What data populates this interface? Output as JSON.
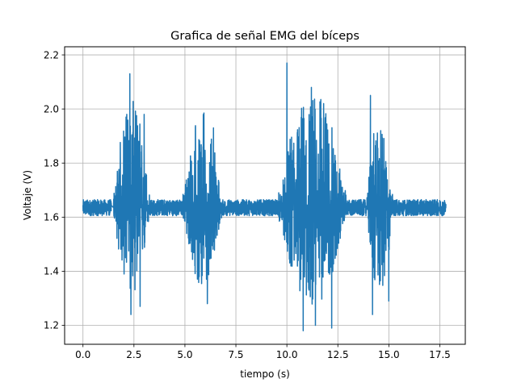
{
  "chart_data": {
    "type": "line",
    "title": "Grafica de señal EMG del bíceps",
    "xlabel": "tiempo (s)",
    "ylabel": "Voltaje (V)",
    "xlim": [
      -0.9,
      18.75
    ],
    "ylim": [
      1.13,
      2.23
    ],
    "x_ticks": [
      0.0,
      2.5,
      5.0,
      7.5,
      10.0,
      12.5,
      15.0,
      17.5
    ],
    "x_tick_labels": [
      "0.0",
      "2.5",
      "5.0",
      "7.5",
      "10.0",
      "12.5",
      "15.0",
      "17.5"
    ],
    "y_ticks": [
      1.2,
      1.4,
      1.6,
      1.8,
      2.0,
      2.2
    ],
    "y_tick_labels": [
      "1.2",
      "1.4",
      "1.6",
      "1.8",
      "2.0",
      "2.2"
    ],
    "grid": true,
    "legend": "none",
    "colors": {
      "line": "#1f77b4",
      "grid": "#b0b0b0",
      "axes": "#000000"
    },
    "series": [
      {
        "baseline": 1.635,
        "x_start": 0.0,
        "x_end": 17.8,
        "segments": [
          {
            "x": [
              0.0,
              1.4
            ],
            "state": "rest",
            "y_min": 1.6,
            "y_max": 1.67
          },
          {
            "x": [
              1.5,
              3.3
            ],
            "state": "contraction",
            "y_min": 1.24,
            "y_max": 2.13,
            "peaks": [
              [
                2.3,
                2.13
              ],
              [
                2.15,
                1.98
              ],
              [
                3.0,
                1.98
              ],
              [
                2.35,
                1.24
              ],
              [
                2.8,
                1.27
              ]
            ]
          },
          {
            "x": [
              3.3,
              4.9
            ],
            "state": "rest",
            "y_min": 1.6,
            "y_max": 1.67
          },
          {
            "x": [
              4.9,
              6.8
            ],
            "state": "contraction",
            "y_min": 1.28,
            "y_max": 2.08,
            "peaks": [
              [
                6.9,
                2.08
              ],
              [
                6.4,
                1.93
              ],
              [
                6.1,
                1.28
              ],
              [
                5.7,
                1.38
              ]
            ]
          },
          {
            "x": [
              6.8,
              9.6
            ],
            "state": "rest",
            "y_min": 1.6,
            "y_max": 1.67
          },
          {
            "x": [
              9.6,
              12.9
            ],
            "state": "contraction",
            "y_min": 1.18,
            "y_max": 2.17,
            "peaks": [
              [
                10.0,
                2.17
              ],
              [
                10.8,
                2.03
              ],
              [
                11.2,
                2.08
              ],
              [
                11.8,
                2.02
              ],
              [
                10.8,
                1.18
              ],
              [
                11.4,
                1.2
              ],
              [
                12.2,
                1.19
              ]
            ]
          },
          {
            "x": [
              12.9,
              13.9
            ],
            "state": "rest",
            "y_min": 1.6,
            "y_max": 1.67
          },
          {
            "x": [
              13.9,
              15.2
            ],
            "state": "contraction",
            "y_min": 1.24,
            "y_max": 2.05,
            "peaks": [
              [
                14.1,
                2.05
              ],
              [
                14.6,
                1.92
              ],
              [
                14.2,
                1.24
              ],
              [
                15.0,
                1.29
              ]
            ]
          },
          {
            "x": [
              15.2,
              17.8
            ],
            "state": "rest",
            "y_min": 1.6,
            "y_max": 1.67
          }
        ]
      }
    ]
  }
}
